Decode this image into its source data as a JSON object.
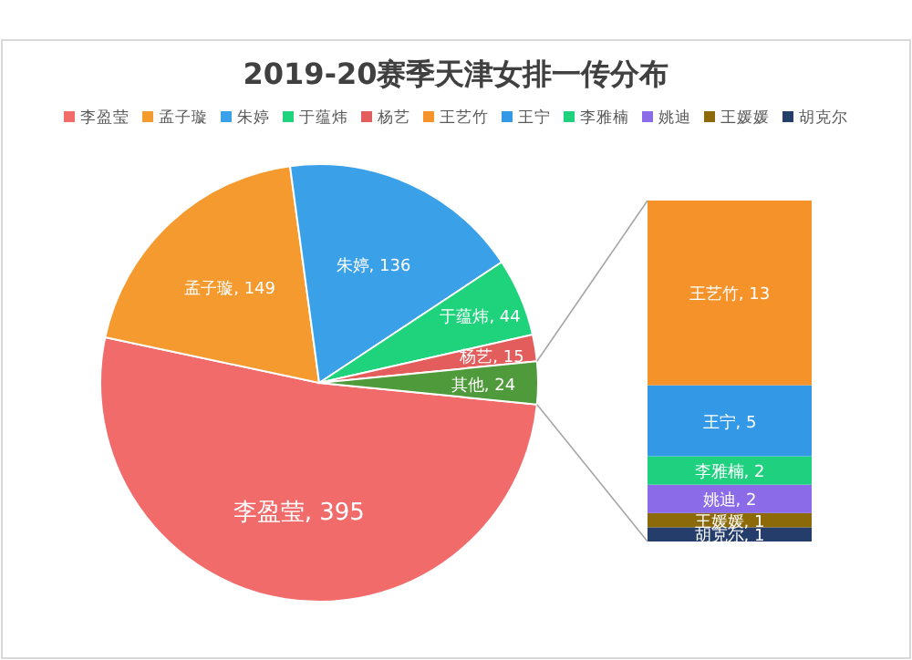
{
  "chart_data": [
    {
      "type": "pie",
      "title": "2019-20赛季天津女排一传分布",
      "legend": "top",
      "categories": [
        "李盈莹",
        "孟子璇",
        "朱婷",
        "于蕴炜",
        "杨艺",
        "其他"
      ],
      "values": [
        395,
        149,
        136,
        44,
        15,
        24
      ],
      "value_labels": [
        ", 395",
        ", 149",
        ", 136",
        ", 44",
        ", 15",
        ", 24"
      ],
      "colors": [
        "#f26b6b",
        "#f59a2f",
        "#3aa0e8",
        "#1ed37c",
        "#e35d5d",
        "#4f9a3a"
      ]
    },
    {
      "type": "bar",
      "stacked": true,
      "legend": "top",
      "categories": [
        null
      ],
      "series": [
        {
          "name": "胡克尔",
          "color": "#253d6a",
          "values": [
            1
          ],
          "value_labels": [
            ", 1"
          ]
        },
        {
          "name": "王媛媛",
          "color": "#8c6a0a",
          "values": [
            1
          ],
          "value_labels": [
            ", 1"
          ]
        },
        {
          "name": "姚迪",
          "color": "#8c6be8",
          "values": [
            2
          ],
          "value_labels": [
            ", 2"
          ]
        },
        {
          "name": "李雅楠",
          "color": "#1fd17f",
          "values": [
            2
          ],
          "value_labels": [
            ", 2"
          ]
        },
        {
          "name": "王宁",
          "color": "#3399e6",
          "values": [
            5
          ],
          "value_labels": [
            ", 5"
          ]
        },
        {
          "name": "王艺竹",
          "color": "#f5922a",
          "values": [
            13
          ],
          "value_labels": [
            ", 13"
          ]
        }
      ]
    }
  ]
}
